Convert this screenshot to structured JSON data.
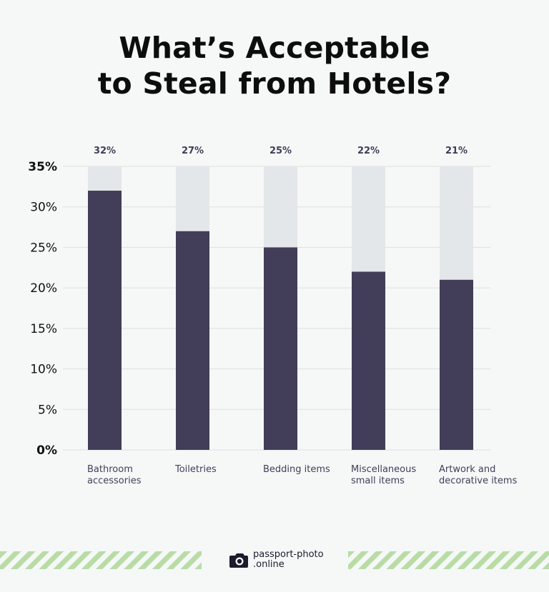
{
  "chart_data": {
    "type": "bar",
    "title_line1": "What’s Acceptable",
    "title_line2": "to Steal from Hotels?",
    "categories": [
      [
        "Bathroom",
        "accessories"
      ],
      [
        "Toiletries"
      ],
      [
        "Bedding items"
      ],
      [
        "Miscellaneous",
        "small items"
      ],
      [
        "Artwork and",
        "decorative items"
      ]
    ],
    "values": [
      32,
      27,
      25,
      22,
      21
    ],
    "value_labels": [
      "32%",
      "27%",
      "25%",
      "22%",
      "21%"
    ],
    "ylim": [
      0,
      35
    ],
    "yticks": [
      0,
      5,
      10,
      15,
      20,
      25,
      30,
      35
    ],
    "ytick_labels": [
      "0%",
      "5%",
      "10%",
      "15%",
      "20%",
      "25%",
      "30%",
      "35%"
    ],
    "grid": true,
    "colors": {
      "bar": "#423d59",
      "background_bar": "#e4e7e9",
      "grid": "#dcdfe2",
      "value_label": "#423d59",
      "tick_label": "#111111",
      "category_label": "#423d59"
    }
  },
  "footer": {
    "brand_line1": "passport-photo",
    "brand_line2": ".online",
    "logo_icon": "camera-icon",
    "stripe_color": "#b9dca6"
  }
}
